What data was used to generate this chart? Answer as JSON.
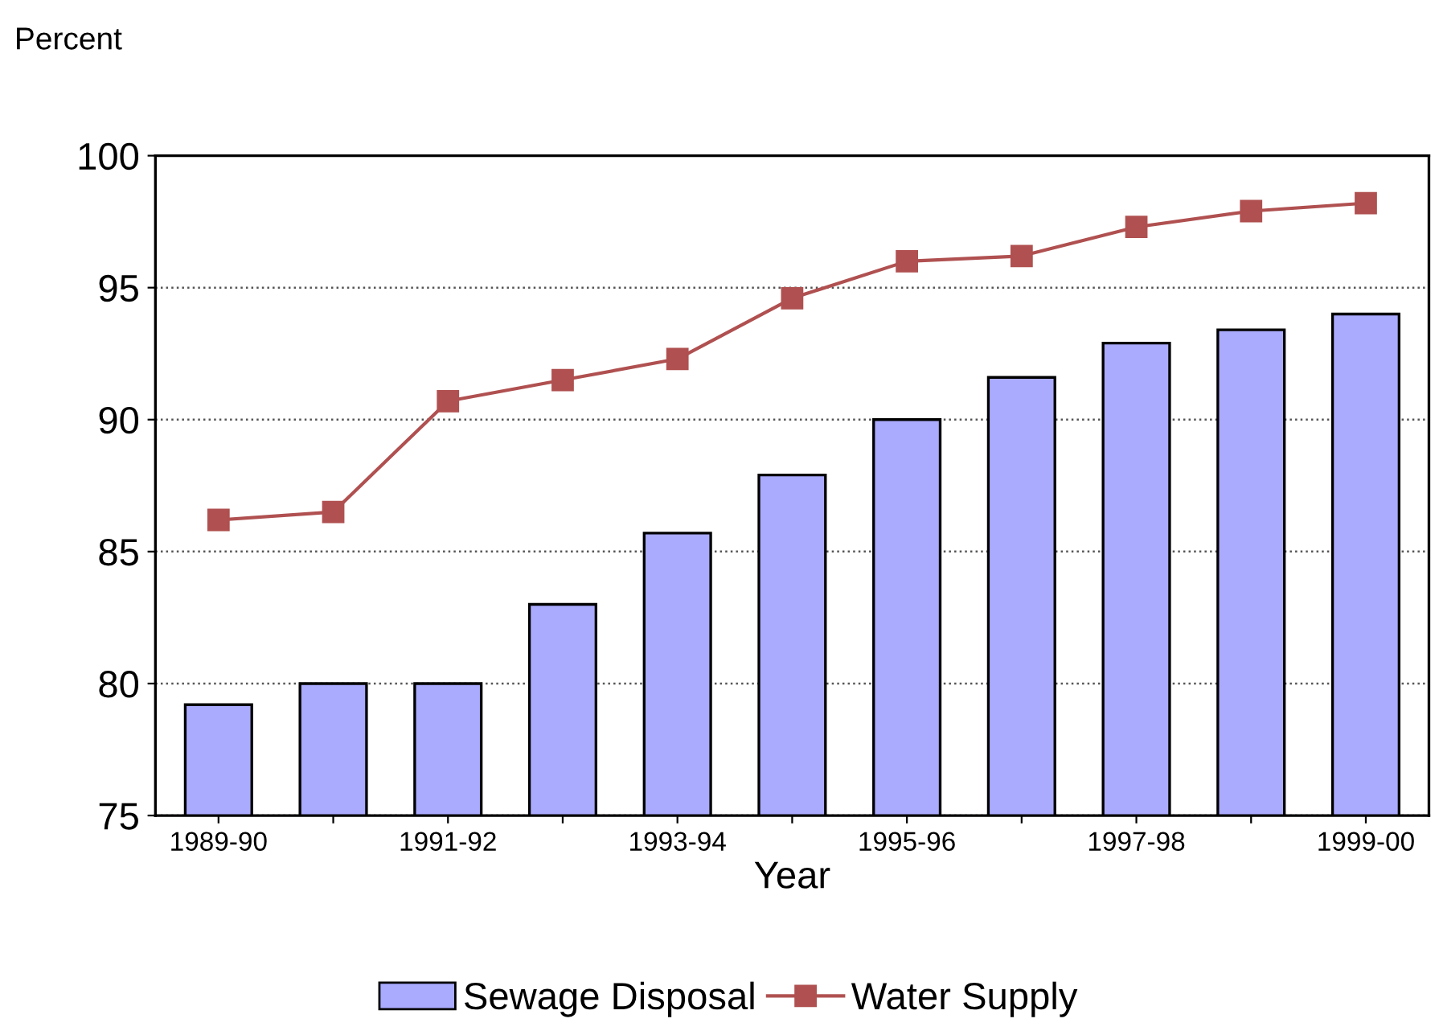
{
  "chart_data": {
    "type": "bar",
    "ylabel": "Percent",
    "xlabel": "Year",
    "categories": [
      "1989-90",
      null,
      "1991-92",
      null,
      "1993-94",
      null,
      "1995-96",
      null,
      "1997-98",
      null,
      "1999-00"
    ],
    "series": [
      {
        "name": "Sewage Disposal",
        "color": "#aaaaff",
        "values": [
          79.2,
          80.0,
          80.0,
          83.0,
          85.7,
          87.9,
          90.0,
          91.6,
          92.9,
          93.4,
          94.0
        ]
      },
      {
        "name": "Water Supply",
        "type": "line",
        "color": "#b05050",
        "marker": "square",
        "values": [
          86.2,
          86.5,
          90.7,
          91.5,
          92.3,
          94.6,
          96.0,
          96.2,
          97.3,
          97.9,
          98.2
        ]
      }
    ],
    "ylim": [
      75,
      100
    ],
    "yticks": [
      75,
      80,
      85,
      90,
      95,
      100
    ],
    "grid": "y",
    "legend": "bottom"
  }
}
